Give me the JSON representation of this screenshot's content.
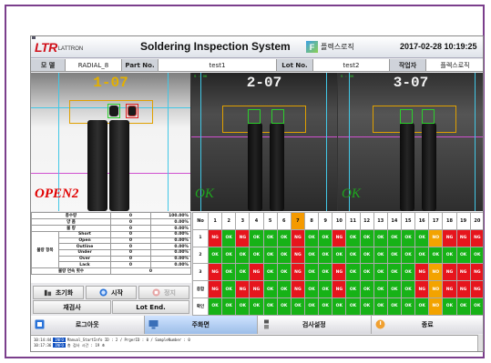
{
  "app": {
    "logo_text": "LTR",
    "logo_sub": "LATTRON",
    "title": "Soldering Inspection System",
    "brand_icon": "F",
    "brand_name": "플렉스로직",
    "datetime": "2017-02-28 10:19:25"
  },
  "info": {
    "model_label": "모 델",
    "model_value": "RADIAL_8",
    "part_label": "Part No.",
    "part_value": "test1",
    "lot_label": "Lot No.",
    "lot_value": "test2",
    "operator_label": "작업자",
    "operator_value": "플렉스로직"
  },
  "cameras": [
    {
      "label": "1-07",
      "status": "OPEN2",
      "overlay": ""
    },
    {
      "label": "2-07",
      "status": "OK",
      "overlay": "S : OK"
    },
    {
      "label": "3-07",
      "status": "OK",
      "overlay": "S : OK"
    }
  ],
  "stats": {
    "rows": [
      {
        "group": "",
        "name": "총수량",
        "count": "0",
        "pct": "100.00%"
      },
      {
        "group": "",
        "name": "양 품",
        "count": "0",
        "pct": "0.00%"
      },
      {
        "group": "",
        "name": "불 량",
        "count": "0",
        "pct": "0.00%"
      },
      {
        "group": "불량 항목",
        "name": "Short",
        "count": "0",
        "pct": "0.00%"
      },
      {
        "group": "",
        "name": "Open",
        "count": "0",
        "pct": "0.00%"
      },
      {
        "group": "",
        "name": "Outline",
        "count": "0",
        "pct": "0.00%"
      },
      {
        "group": "",
        "name": "Under",
        "count": "0",
        "pct": "0.00%"
      },
      {
        "group": "",
        "name": "Over",
        "count": "0",
        "pct": "0.00%"
      },
      {
        "group": "",
        "name": "Lack",
        "count": "0",
        "pct": "0.00%"
      }
    ],
    "continuous_label": "불량 연속 횟수",
    "continuous_value": "0"
  },
  "controls": {
    "reset_label": "초기화",
    "start_label": "시작",
    "stop_label": "정지",
    "retest_label": "재검사",
    "lot_end_label": "Lot End."
  },
  "grid": {
    "corner_label": "No",
    "selected_col": 7,
    "columns": [
      "1",
      "2",
      "3",
      "4",
      "5",
      "6",
      "7",
      "8",
      "9",
      "10",
      "11",
      "12",
      "13",
      "14",
      "15",
      "16",
      "17",
      "18",
      "19",
      "20"
    ],
    "rows": [
      {
        "label": "1",
        "cells": [
          "NG",
          "OK",
          "NG",
          "OK",
          "OK",
          "OK",
          "NG",
          "OK",
          "OK",
          "NG",
          "OK",
          "OK",
          "OK",
          "OK",
          "OK",
          "OK",
          "NO",
          "NG",
          "NG",
          "NG"
        ]
      },
      {
        "label": "2",
        "cells": [
          "OK",
          "OK",
          "OK",
          "OK",
          "OK",
          "OK",
          "NG",
          "OK",
          "OK",
          "OK",
          "OK",
          "OK",
          "OK",
          "OK",
          "OK",
          "OK",
          "OK",
          "OK",
          "OK",
          "OK"
        ]
      },
      {
        "label": "3",
        "cells": [
          "NG",
          "OK",
          "OK",
          "NG",
          "OK",
          "OK",
          "NG",
          "OK",
          "OK",
          "NG",
          "OK",
          "OK",
          "OK",
          "OK",
          "OK",
          "NG",
          "NO",
          "NG",
          "NG",
          "NG"
        ]
      },
      {
        "label": "종합",
        "cells": [
          "NG",
          "OK",
          "NG",
          "NG",
          "OK",
          "OK",
          "NG",
          "OK",
          "OK",
          "NG",
          "OK",
          "OK",
          "OK",
          "OK",
          "OK",
          "NG",
          "NO",
          "NG",
          "NG",
          "NG"
        ]
      },
      {
        "label": "확인",
        "cells": [
          "OK",
          "OK",
          "OK",
          "OK",
          "OK",
          "OK",
          "OK",
          "OK",
          "OK",
          "OK",
          "OK",
          "OK",
          "OK",
          "OK",
          "OK",
          "OK",
          "NO",
          "OK",
          "OK",
          "OK"
        ]
      }
    ]
  },
  "bottom": {
    "logout_label": "로그아웃",
    "main_label": "주화면",
    "settings_label": "검사설정",
    "exit_label": "종료"
  },
  "log": [
    {
      "time": "10:14:44",
      "level": "INFO",
      "text": "Manual_StartInfo ID : 2 / PrgerID : 0 / SampleNumber : 0"
    },
    {
      "time": "10:17:36",
      "level": "INFO",
      "text": "총 검사 시간 : 19 초"
    }
  ],
  "colors": {
    "ok": "#17b217",
    "ng": "#e6151d",
    "no": "#f3a300",
    "frame": "#7b3f8c",
    "accent": "#d0101a"
  }
}
